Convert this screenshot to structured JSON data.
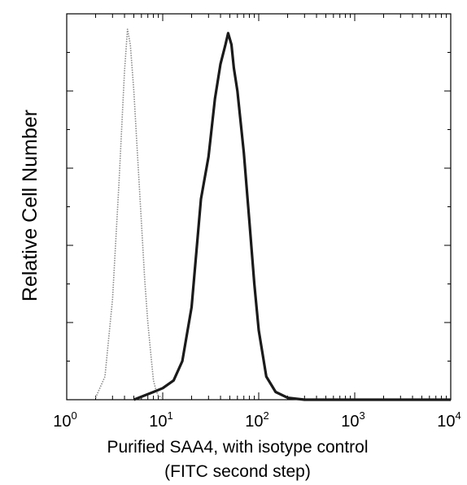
{
  "chart_data": {
    "type": "line",
    "title": "",
    "xlabel_line1": "Purified SAA4, with isotype control",
    "xlabel_line2": "(FITC second step)",
    "ylabel": "Relative Cell Number",
    "x_scale": "log",
    "xlim": [
      1,
      10000
    ],
    "ylim": [
      0,
      1.0
    ],
    "x_tick_labels": [
      {
        "base": "10",
        "exp": "0",
        "value": 1
      },
      {
        "base": "10",
        "exp": "1",
        "value": 10
      },
      {
        "base": "10",
        "exp": "2",
        "value": 100
      },
      {
        "base": "10",
        "exp": "3",
        "value": 1000
      },
      {
        "base": "10",
        "exp": "4",
        "value": 10000
      }
    ],
    "y_major_ticks": [
      0,
      0.2,
      0.4,
      0.6,
      0.8
    ],
    "grid": false,
    "legend": "none",
    "series": [
      {
        "style": "dotted-gray",
        "color": "#8a8a8a",
        "x": [
          2.0,
          2.5,
          3.0,
          3.5,
          4.0,
          4.3,
          4.6,
          5.0,
          5.5,
          6.0,
          6.5,
          7.0,
          7.5,
          8.0,
          8.5,
          9.0,
          10.0
        ],
        "y": [
          0.005,
          0.06,
          0.26,
          0.56,
          0.85,
          0.96,
          0.92,
          0.8,
          0.62,
          0.46,
          0.31,
          0.2,
          0.12,
          0.05,
          0.025,
          0.01,
          0.005
        ]
      },
      {
        "style": "solid-black",
        "color": "#1a1a1a",
        "x": [
          5.0,
          8.0,
          10.0,
          13.0,
          16.0,
          20.0,
          25.0,
          30.0,
          35.0,
          40.0,
          45.0,
          48.0,
          52.0,
          55.0,
          60.0,
          70.0,
          80.0,
          90.0,
          100.0,
          120.0,
          150.0,
          200.0,
          300.0,
          1000.0,
          10000.0
        ],
        "y": [
          0.0,
          0.02,
          0.03,
          0.05,
          0.1,
          0.24,
          0.52,
          0.63,
          0.78,
          0.87,
          0.92,
          0.95,
          0.92,
          0.86,
          0.8,
          0.64,
          0.46,
          0.3,
          0.18,
          0.06,
          0.02,
          0.005,
          0.0,
          0.0,
          0.0
        ]
      }
    ]
  }
}
